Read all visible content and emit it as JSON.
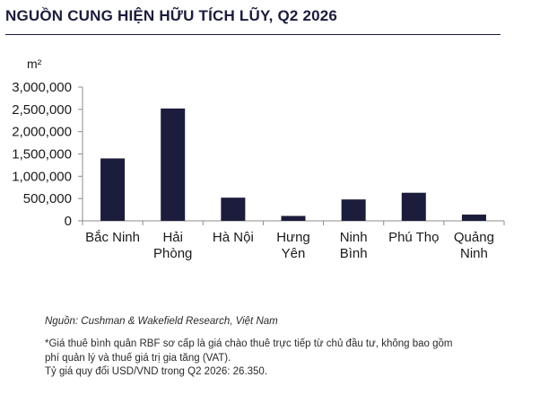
{
  "title": "NGUỒN CUNG HIỆN HỮU TÍCH LŨY, Q2 2026",
  "chart_data": {
    "type": "bar",
    "title": "NGUỒN CUNG HIỆN HỮU TÍCH LŨY, Q2 2026",
    "ylabel": "m²",
    "xlabel": "",
    "categories": [
      [
        "Bắc Ninh"
      ],
      [
        "Hải",
        "Phòng"
      ],
      [
        "Hà Nội"
      ],
      [
        "Hưng",
        "Yên"
      ],
      [
        "Ninh",
        "Bình"
      ],
      [
        "Phú Thọ"
      ],
      [
        "Quảng",
        "Ninh"
      ]
    ],
    "values": [
      1400000,
      2520000,
      520000,
      110000,
      480000,
      630000,
      140000
    ],
    "ylim": [
      0,
      3000000
    ],
    "yticks": [
      0,
      500000,
      1000000,
      1500000,
      2000000,
      2500000,
      3000000
    ],
    "ytick_labels": [
      "0",
      "500,000",
      "1,000,000",
      "1,500,000",
      "2,000,000",
      "2,500,000",
      "3,000,000"
    ],
    "grid": false,
    "bar_color": "#1c1c3c"
  },
  "footer": {
    "source": "Nguồn: Cushman & Wakefield Research, Việt Nam",
    "note_line1": "*Giá thuê bình quân RBF sơ cấp là giá chào thuê trực tiếp từ chủ đầu tư, không bao gồm",
    "note_line2": "phí quản lý và thuế giá trị gia tăng (VAT).",
    "note_line3": "Tỷ giá quy đổi USD/VND trong Q2 2026: 26.350."
  }
}
